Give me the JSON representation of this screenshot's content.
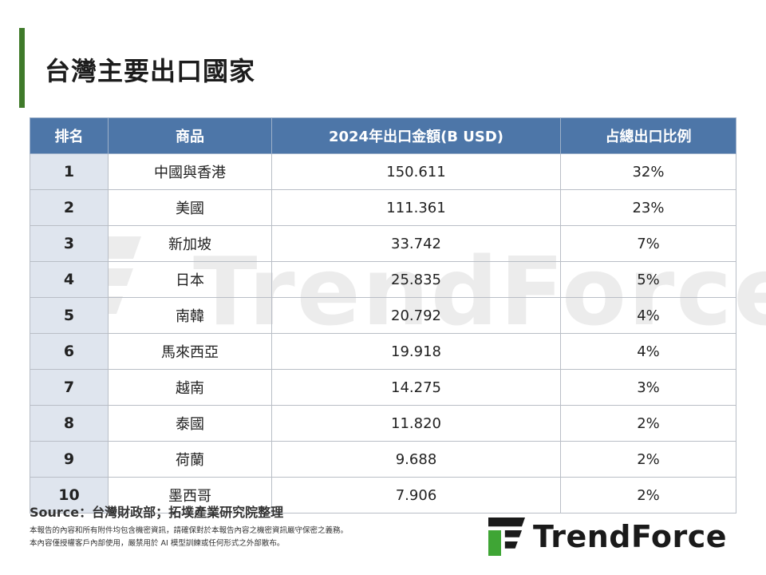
{
  "title": "台灣主要出口國家",
  "table": {
    "headers": [
      "排名",
      "商品",
      "2024年出口金額(B USD)",
      "占總出口比例"
    ],
    "rows": [
      {
        "rank": "1",
        "item": "中國與香港",
        "amount": "150.611",
        "share": "32%"
      },
      {
        "rank": "2",
        "item": "美國",
        "amount": "111.361",
        "share": "23%"
      },
      {
        "rank": "3",
        "item": "新加坡",
        "amount": "33.742",
        "share": "7%"
      },
      {
        "rank": "4",
        "item": "日本",
        "amount": "25.835",
        "share": "5%"
      },
      {
        "rank": "5",
        "item": "南韓",
        "amount": "20.792",
        "share": "4%"
      },
      {
        "rank": "6",
        "item": "馬來西亞",
        "amount": "19.918",
        "share": "4%"
      },
      {
        "rank": "7",
        "item": "越南",
        "amount": "14.275",
        "share": "3%"
      },
      {
        "rank": "8",
        "item": "泰國",
        "amount": "11.820",
        "share": "2%"
      },
      {
        "rank": "9",
        "item": "荷蘭",
        "amount": "9.688",
        "share": "2%"
      },
      {
        "rank": "10",
        "item": "墨西哥",
        "amount": "7.906",
        "share": "2%"
      }
    ]
  },
  "source": "Source：台灣財政部；拓墣產業研究院整理",
  "disclaimer": {
    "line1": "本報告的內容和所有附件均包含機密資訊，請確保對於本報告內容之機密資訊嚴守保密之義務。",
    "line2": "本內容僅授權客戶內部使用，嚴禁用於 AI 模型訓練或任何形式之外部散布。"
  },
  "logo": {
    "text": "TrendForce"
  },
  "watermark": {
    "text": "TrendForce"
  },
  "colors": {
    "accent": "#3f7a2a",
    "header": "#4d76a8",
    "rank_cell": "#dfe5ee"
  }
}
